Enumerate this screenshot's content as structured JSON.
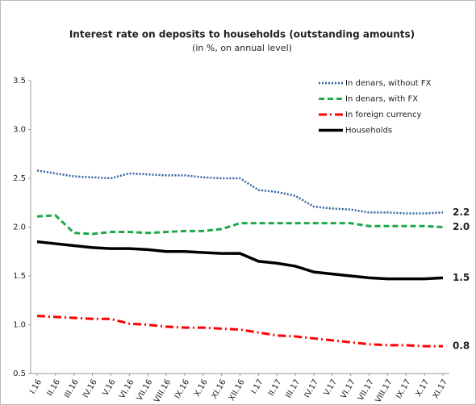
{
  "chart_data": {
    "type": "line",
    "title": "Interest rate on deposits to households (outstanding amounts)",
    "subtitle": "(in %, on annual level)",
    "categories": [
      "I.16",
      "II.16",
      "III.16",
      "IV.16",
      "V.16",
      "VI.16",
      "VII.16",
      "VIII.16",
      "IX.16",
      "X.16",
      "XI.16",
      "XII.16",
      "I.17",
      "II.17",
      "III.17",
      "IV.17",
      "V.17",
      "VI.17",
      "VII.17",
      "VIII.17",
      "IX.17",
      "X.17",
      "XI.17"
    ],
    "ylim": [
      0.5,
      3.5
    ],
    "yticks": [
      0.5,
      {
        "value": 1,
        "label": "1.0"
      },
      1.5,
      {
        "value": 2,
        "label": "2.0"
      },
      2.5,
      {
        "value": 3,
        "label": "3.0"
      },
      3.5
    ],
    "grid": false,
    "legend": "upper right",
    "series": [
      {
        "name": "In denars, without FX",
        "color": "#2e5f9e",
        "style": "dotted",
        "values": [
          2.58,
          2.55,
          2.52,
          2.51,
          2.5,
          2.55,
          2.54,
          2.53,
          2.53,
          2.51,
          2.5,
          2.5,
          2.38,
          2.36,
          2.32,
          2.21,
          2.19,
          2.18,
          2.15,
          2.15,
          2.14,
          2.14,
          2.15
        ],
        "value_labels": [
          null,
          null,
          null,
          null,
          null,
          null,
          null,
          null,
          null,
          null,
          null,
          null,
          null,
          null,
          null,
          null,
          null,
          null,
          null,
          null,
          null,
          null,
          "2.2"
        ]
      },
      {
        "name": "In denars, with FX",
        "color": "#1fa84a",
        "style": "dashed",
        "values": [
          2.11,
          2.12,
          1.94,
          1.93,
          1.95,
          1.95,
          1.94,
          1.95,
          1.96,
          1.96,
          1.98,
          2.04,
          2.04,
          2.04,
          2.04,
          2.04,
          2.04,
          2.04,
          2.01,
          2.01,
          2.01,
          2.01,
          2.0
        ],
        "value_labels": [
          null,
          null,
          null,
          null,
          null,
          null,
          null,
          null,
          null,
          null,
          null,
          null,
          null,
          null,
          null,
          null,
          null,
          null,
          null,
          null,
          null,
          null,
          "2.0"
        ]
      },
      {
        "name": "In foreign currency",
        "color": "#ff0000",
        "style": "dashdot",
        "values": [
          1.09,
          1.08,
          1.07,
          1.06,
          1.06,
          1.01,
          1.0,
          0.98,
          0.97,
          0.97,
          0.96,
          0.95,
          0.92,
          0.89,
          0.88,
          0.86,
          0.84,
          0.82,
          0.8,
          0.79,
          0.79,
          0.78,
          0.78
        ],
        "value_labels": [
          null,
          null,
          null,
          null,
          null,
          null,
          null,
          null,
          null,
          null,
          null,
          null,
          null,
          null,
          null,
          null,
          null,
          null,
          null,
          null,
          null,
          null,
          "0.8"
        ]
      },
      {
        "name": "Households",
        "color": "#000000",
        "style": "solid",
        "values": [
          1.85,
          1.83,
          1.81,
          1.79,
          1.78,
          1.78,
          1.77,
          1.75,
          1.75,
          1.74,
          1.73,
          1.73,
          1.65,
          1.63,
          1.6,
          1.54,
          1.52,
          1.5,
          1.48,
          1.47,
          1.47,
          1.47,
          1.48
        ],
        "value_labels": [
          null,
          null,
          null,
          null,
          null,
          null,
          null,
          null,
          null,
          null,
          null,
          null,
          null,
          null,
          null,
          null,
          null,
          null,
          null,
          null,
          null,
          null,
          "1.5"
        ]
      }
    ]
  }
}
